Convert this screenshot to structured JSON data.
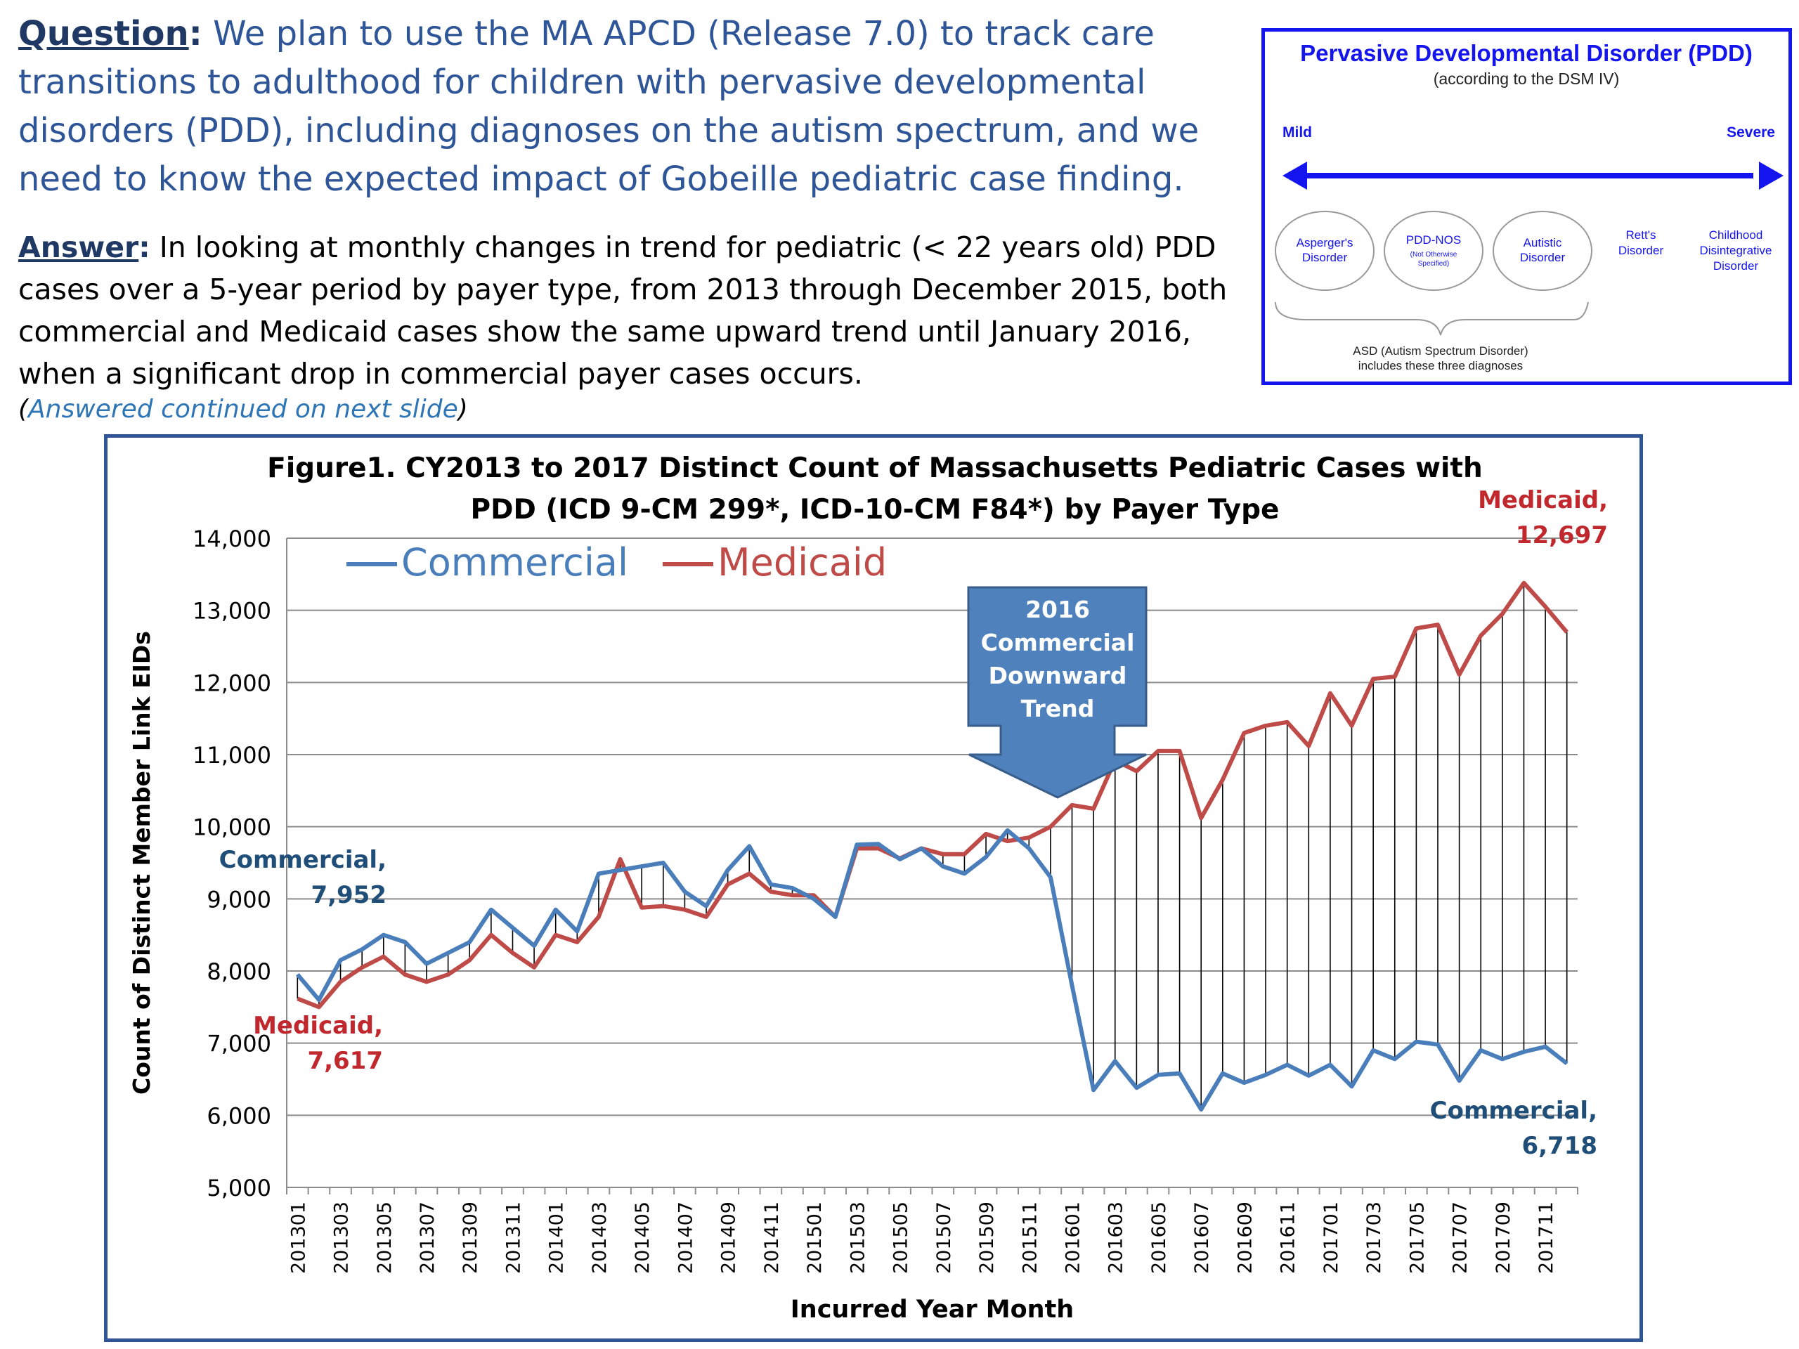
{
  "question": {
    "label": "Question",
    "text": "We plan to use the MA APCD (Release 7.0) to track care transitions  to adulthood for children with pervasive developmental disorders (PDD), including diagnoses on the autism spectrum, and we need to know the expected impact of Gobeille pediatric case finding."
  },
  "answer": {
    "label": "Answer",
    "text": "In looking at monthly changes in trend for pediatric (< 22 years old) PDD cases over a 5-year period by payer type, from 2013 through December 2015, both commercial and Medicaid cases show the same upward trend until January 2016, when a significant drop in commercial payer cases occurs.",
    "continued": "Answered continued on next slide"
  },
  "pdd_diagram": {
    "title": "Pervasive Developmental Disorder (PDD)",
    "subtitle": "(according to the DSM IV)",
    "mild": "Mild",
    "severe": "Severe",
    "circled": [
      {
        "line1": "Asperger's",
        "line2": "Disorder",
        "line3": ""
      },
      {
        "line1": "PDD-NOS",
        "line2": "(Not Otherwise",
        "line3": "Specified)"
      },
      {
        "line1": "Autistic",
        "line2": "Disorder",
        "line3": ""
      }
    ],
    "other": [
      {
        "line1": "Rett's",
        "line2": "Disorder",
        "line3": ""
      },
      {
        "line1": "Childhood",
        "line2": "Disintegrative",
        "line3": "Disorder"
      }
    ],
    "asd_line1": "ASD (Autism Spectrum Disorder)",
    "asd_line2": "includes these three diagnoses",
    "colors": {
      "arrow": "#1414ee",
      "title": "#1414ee"
    }
  },
  "chart_data": {
    "type": "line",
    "title_line1": "Figure1. CY2013 to 2017 Distinct Count of Massachusetts  Pediatric  Cases with",
    "title_line2": "PDD (ICD 9-CM 299*, ICD-10-CM F84*) by Payer Type",
    "xlabel": "Incurred Year Month",
    "ylabel": "Count of Distinct Member Link EIDs",
    "ylim": [
      5000,
      14000
    ],
    "yticks": [
      5000,
      6000,
      7000,
      8000,
      9000,
      10000,
      11000,
      12000,
      13000,
      14000
    ],
    "ytick_labels": [
      "5,000",
      "6,000",
      "7,000",
      "8,000",
      "9,000",
      "10,000",
      "11,000",
      "12,000",
      "13,000",
      "14,000"
    ],
    "x": [
      "201301",
      "201302",
      "201303",
      "201304",
      "201305",
      "201306",
      "201307",
      "201308",
      "201309",
      "201310",
      "201311",
      "201312",
      "201401",
      "201402",
      "201403",
      "201404",
      "201405",
      "201406",
      "201407",
      "201408",
      "201409",
      "201410",
      "201411",
      "201412",
      "201501",
      "201502",
      "201503",
      "201504",
      "201505",
      "201506",
      "201507",
      "201508",
      "201509",
      "201510",
      "201511",
      "201512",
      "201601",
      "201602",
      "201603",
      "201604",
      "201605",
      "201606",
      "201607",
      "201608",
      "201609",
      "201610",
      "201611",
      "201612",
      "201701",
      "201702",
      "201703",
      "201704",
      "201705",
      "201706",
      "201707",
      "201708",
      "201709",
      "201710",
      "201711",
      "201712"
    ],
    "xtick_labels": [
      "201301",
      "201303",
      "201305",
      "201307",
      "201309",
      "201311",
      "201401",
      "201403",
      "201405",
      "201407",
      "201409",
      "201411",
      "201501",
      "201503",
      "201505",
      "201507",
      "201509",
      "201511",
      "201601",
      "201603",
      "201605",
      "201607",
      "201609",
      "201611",
      "201701",
      "201703",
      "201705",
      "201707",
      "201709",
      "201711"
    ],
    "series": [
      {
        "name": "Commercial",
        "color": "#4a7ebb",
        "values": [
          7952,
          7600,
          8150,
          8300,
          8500,
          8400,
          8100,
          8250,
          8400,
          8850,
          8600,
          8350,
          8850,
          8550,
          9350,
          9400,
          9450,
          9500,
          9100,
          8900,
          9400,
          9730,
          9200,
          9150,
          9000,
          8750,
          9750,
          9760,
          9550,
          9700,
          9450,
          9350,
          9580,
          9950,
          9700,
          9300,
          7800,
          6350,
          6750,
          6380,
          6560,
          6580,
          6080,
          6580,
          6450,
          6560,
          6700,
          6550,
          6700,
          6400,
          6900,
          6780,
          7020,
          6980,
          6480,
          6900,
          6780,
          6880,
          6950,
          6718
        ]
      },
      {
        "name": "Medicaid",
        "color": "#be4b48",
        "values": [
          7617,
          7500,
          7850,
          8050,
          8200,
          7950,
          7850,
          7950,
          8150,
          8500,
          8250,
          8050,
          8500,
          8400,
          8750,
          9550,
          8880,
          8900,
          8850,
          8750,
          9200,
          9350,
          9100,
          9050,
          9050,
          8750,
          9700,
          9700,
          9560,
          9700,
          9620,
          9620,
          9900,
          9800,
          9850,
          10000,
          10300,
          10250,
          10920,
          10770,
          11050,
          11050,
          10120,
          10650,
          11300,
          11400,
          11450,
          11120,
          11850,
          11400,
          12050,
          12080,
          12750,
          12800,
          12110,
          12650,
          12950,
          13380,
          13050,
          12697
        ]
      }
    ],
    "legend_position": "top-left",
    "annotations": {
      "commercial_start": {
        "line1": "Commercial,",
        "line2": "7,952"
      },
      "medicaid_start": {
        "line1": "Medicaid,",
        "line2": "7,617"
      },
      "medicaid_end": {
        "line1": "Medicaid,",
        "line2": "12,697"
      },
      "commercial_end": {
        "line1": "Commercial,",
        "line2": "6,718"
      },
      "callout": [
        "2016",
        "Commercial",
        "Downward",
        "Trend"
      ]
    },
    "drop_lines": true,
    "grid": "horizontal"
  }
}
